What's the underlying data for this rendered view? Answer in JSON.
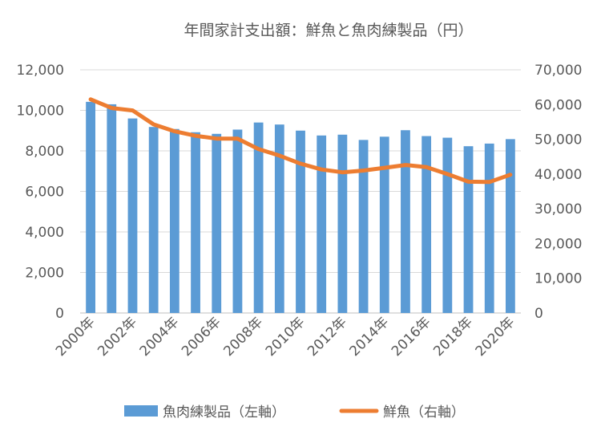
{
  "chart_data": {
    "type": "bar+line",
    "title": "年間家計支出額：鮮魚と魚肉練製品（円）",
    "categories": [
      "2000年",
      "2001年",
      "2002年",
      "2003年",
      "2004年",
      "2005年",
      "2006年",
      "2007年",
      "2008年",
      "2009年",
      "2010年",
      "2011年",
      "2012年",
      "2013年",
      "2014年",
      "2015年",
      "2016年",
      "2017年",
      "2018年",
      "2019年",
      "2020年"
    ],
    "x_tick_labels": [
      "2000年",
      "2002年",
      "2004年",
      "2006年",
      "2008年",
      "2010年",
      "2012年",
      "2014年",
      "2016年",
      "2018年",
      "2020年"
    ],
    "y_left": {
      "min": 0,
      "max": 12000,
      "ticks": [
        "0",
        "2,000",
        "4,000",
        "6,000",
        "8,000",
        "10,000",
        "12,000"
      ]
    },
    "y_right": {
      "min": 0,
      "max": 70000,
      "ticks": [
        "0",
        "10,000",
        "20,000",
        "30,000",
        "40,000",
        "50,000",
        "60,000",
        "70,000"
      ]
    },
    "series": [
      {
        "name": "魚肉練製品（左軸）",
        "type": "bar",
        "axis": "left",
        "color": "#5B9BD5",
        "values": [
          10420,
          10300,
          9600,
          9180,
          9080,
          8920,
          8840,
          9050,
          9400,
          9300,
          9000,
          8760,
          8800,
          8540,
          8700,
          9020,
          8730,
          8650,
          8230,
          8360,
          8580
        ]
      },
      {
        "name": "鮮魚（右軸）",
        "type": "line",
        "axis": "right",
        "color": "#ED7D31",
        "values": [
          61500,
          59000,
          58300,
          54300,
          52300,
          51000,
          50200,
          50200,
          47200,
          45300,
          43000,
          41300,
          40500,
          41000,
          41800,
          42600,
          42000,
          40000,
          37800,
          37700,
          39800
        ]
      }
    ],
    "legend_position": "bottom",
    "grid": true
  }
}
